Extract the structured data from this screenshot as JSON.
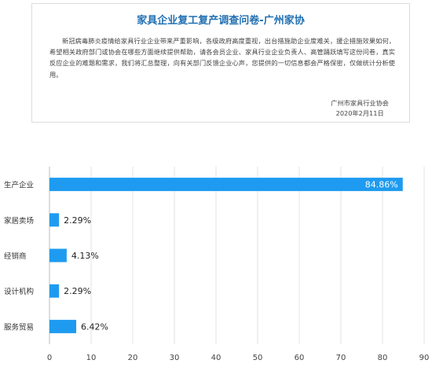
{
  "survey": {
    "title": "家具企业复工复产调查问卷-广州家协",
    "intro": "新冠病毒肺炎疫情给家具行业企业带来严重影响，各级政府高度重视，出台措施助企业度难关，援企措施效果如何，希望相关政府部门或协会在哪些方面继续提供帮助，请各会员企业、家具行业企业负责人、高管踊跃填写这份问卷，真实反应企业的难题和需求，我们将汇总整理，向有关部门反馈企业心声，您提供的一切信息都会严格保密，仅做统计分析使用。",
    "org": "广州市家具行业协会",
    "date": "2020年2月11日"
  },
  "colors": {
    "bar": "#1e9bf0",
    "title": "#1f6fb2",
    "grid": "#e3e3e3"
  },
  "chart_data": {
    "type": "bar",
    "orientation": "horizontal",
    "categories": [
      "生产企业",
      "家居卖场",
      "经销商",
      "设计机构",
      "服务贸易"
    ],
    "values": [
      84.86,
      2.29,
      4.13,
      2.29,
      6.42
    ],
    "value_labels": [
      "84.86%",
      "2.29%",
      "4.13%",
      "2.29%",
      "6.42%"
    ],
    "xlim": [
      0,
      90
    ],
    "xticks": [
      "0",
      "10",
      "20",
      "30",
      "40",
      "50",
      "60",
      "70",
      "80",
      "90"
    ],
    "grid": true,
    "legend": "none"
  }
}
